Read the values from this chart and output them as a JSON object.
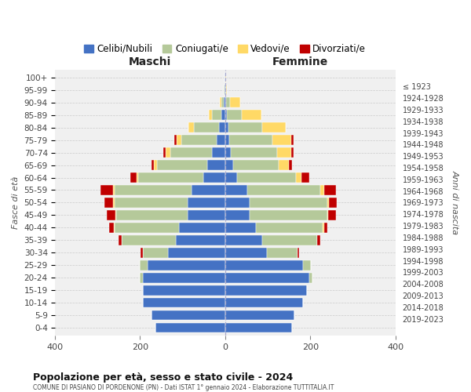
{
  "age_groups_display": [
    "100+",
    "95-99",
    "90-94",
    "85-89",
    "80-84",
    "75-79",
    "70-74",
    "65-69",
    "60-64",
    "55-59",
    "50-54",
    "45-49",
    "40-44",
    "35-39",
    "30-34",
    "25-29",
    "20-24",
    "15-19",
    "10-14",
    "5-9",
    "0-4"
  ],
  "birth_years_display": [
    "≤ 1923",
    "1924-1928",
    "1929-1933",
    "1934-1938",
    "1939-1943",
    "1944-1948",
    "1949-1953",
    "1954-1958",
    "1959-1963",
    "1964-1968",
    "1969-1973",
    "1974-1978",
    "1979-1983",
    "1984-1988",
    "1989-1993",
    "1994-1998",
    "1999-2003",
    "2004-2008",
    "2009-2013",
    "2014-2018",
    "2019-2023"
  ],
  "colors": {
    "celibe": "#4472c4",
    "coniugato": "#b5c99a",
    "vedovo": "#ffd966",
    "divorziato": "#c00000"
  },
  "maschi": {
    "celibe": [
      2,
      2,
      3,
      8,
      14,
      20,
      30,
      42,
      52,
      78,
      88,
      88,
      108,
      115,
      135,
      183,
      193,
      193,
      193,
      173,
      163
    ],
    "coniugato": [
      0,
      1,
      5,
      22,
      60,
      82,
      98,
      118,
      152,
      182,
      172,
      168,
      152,
      128,
      58,
      18,
      8,
      0,
      0,
      0,
      0
    ],
    "vedovo": [
      0,
      1,
      5,
      8,
      12,
      12,
      12,
      8,
      4,
      4,
      4,
      2,
      2,
      0,
      0,
      0,
      0,
      0,
      0,
      0,
      0
    ],
    "divorziato": [
      0,
      0,
      0,
      0,
      0,
      5,
      5,
      5,
      15,
      28,
      20,
      20,
      10,
      8,
      5,
      0,
      0,
      0,
      0,
      0,
      0
    ]
  },
  "femmine": {
    "nubile": [
      1,
      1,
      3,
      5,
      8,
      10,
      14,
      18,
      28,
      52,
      58,
      58,
      72,
      88,
      98,
      183,
      198,
      193,
      183,
      163,
      158
    ],
    "coniugata": [
      0,
      1,
      8,
      35,
      80,
      102,
      108,
      108,
      138,
      172,
      182,
      182,
      158,
      128,
      72,
      18,
      8,
      0,
      0,
      0,
      0
    ],
    "vedova": [
      1,
      3,
      25,
      45,
      55,
      43,
      33,
      23,
      13,
      8,
      4,
      2,
      2,
      0,
      0,
      0,
      0,
      0,
      0,
      0,
      0
    ],
    "divorziata": [
      0,
      0,
      0,
      0,
      0,
      5,
      5,
      8,
      18,
      28,
      18,
      18,
      8,
      8,
      4,
      0,
      0,
      0,
      0,
      0,
      0
    ]
  },
  "title": "Popolazione per età, sesso e stato civile - 2024",
  "subtitle": "COMUNE DI PASIANO DI PORDENONE (PN) - Dati ISTAT 1° gennaio 2024 - Elaborazione TUTTITALIA.IT",
  "ylabel": "Fasce di età",
  "right_ylabel": "Anni di nascita",
  "xlabel_left": "Maschi",
  "xlabel_right": "Femmine",
  "xlim": 400,
  "bg_color": "#f0f0f0",
  "grid_color": "#cccccc"
}
